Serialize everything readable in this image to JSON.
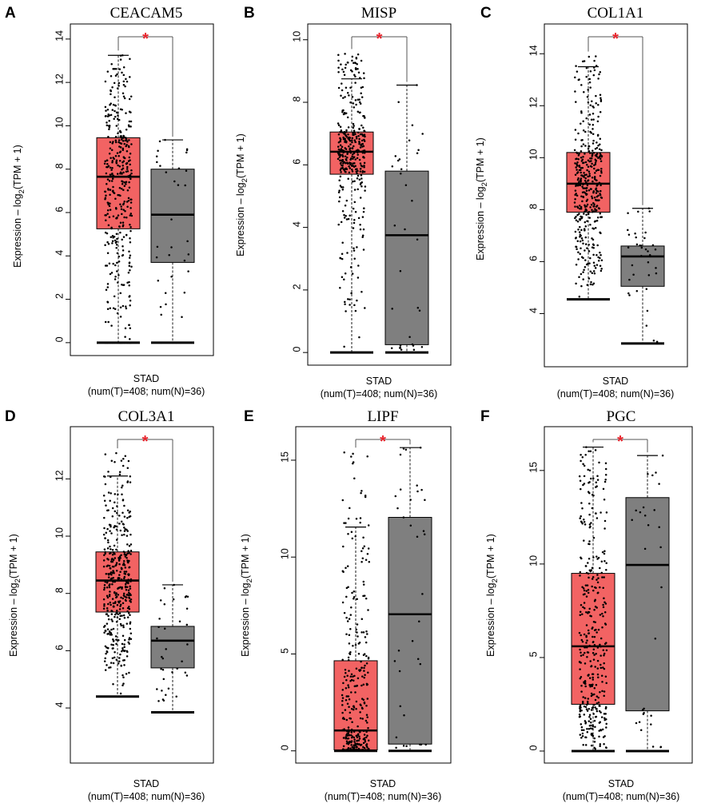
{
  "colors": {
    "tumor": "#f26363",
    "normal": "#7f7f7f",
    "significance": "#e8232b",
    "point": "#000000"
  },
  "ylabel_prefix": "Expression – log",
  "ylabel_sub": "2",
  "ylabel_suffix": "(TPM + 1)",
  "significance_marker": "*",
  "chart_data": [
    {
      "panel": "A",
      "type": "box",
      "title": "CEACAM5",
      "xlabel_line1": "STAD",
      "xlabel_line2": "(num(T)=408; num(N)=36)",
      "ylim": [
        -0.3,
        14.4
      ],
      "yticks": [
        0,
        2,
        4,
        6,
        8,
        10,
        12,
        14
      ],
      "tumor": {
        "n": 408,
        "whisker_low": 0,
        "q1": 5.25,
        "median": 7.65,
        "q3": 9.45,
        "whisker_high": 13.25,
        "max_point": 13.25
      },
      "normal": {
        "n": 36,
        "whisker_low": 0,
        "q1": 3.7,
        "median": 5.9,
        "q3": 8.0,
        "whisker_high": 9.35,
        "max_point": 9.35
      }
    },
    {
      "panel": "B",
      "type": "box",
      "title": "MISP",
      "xlabel_line1": "STAD",
      "xlabel_line2": "(num(T)=408; num(N)=36)",
      "ylim": [
        -0.2,
        10.3
      ],
      "yticks": [
        0,
        2,
        4,
        6,
        8,
        10
      ],
      "tumor": {
        "n": 408,
        "whisker_low": 0,
        "q1": 5.7,
        "median": 6.42,
        "q3": 7.05,
        "whisker_high": 8.75,
        "max_point": 9.55
      },
      "normal": {
        "n": 36,
        "whisker_low": 0,
        "q1": 0.25,
        "median": 3.75,
        "q3": 5.8,
        "whisker_high": 8.55,
        "max_point": 8.55
      }
    },
    {
      "panel": "C",
      "type": "box",
      "title": "COL1A1",
      "xlabel_line1": "STAD",
      "xlabel_line2": "(num(T)=408; num(N)=36)",
      "ylim": [
        2.2,
        14.9
      ],
      "yticks": [
        4,
        6,
        8,
        10,
        12,
        14
      ],
      "tumor": {
        "n": 408,
        "whisker_low": 4.55,
        "q1": 7.9,
        "median": 9.0,
        "q3": 10.2,
        "whisker_high": 13.5,
        "max_point": 13.9
      },
      "normal": {
        "n": 36,
        "whisker_low": 2.85,
        "q1": 5.05,
        "median": 6.2,
        "q3": 6.6,
        "whisker_high": 8.05,
        "max_point": 8.05
      }
    },
    {
      "panel": "D",
      "type": "box",
      "title": "COL3A1",
      "xlabel_line1": "STAD",
      "xlabel_line2": "(num(T)=408; num(N)=36)",
      "ylim": [
        2.3,
        13.6
      ],
      "yticks": [
        4,
        6,
        8,
        10,
        12
      ],
      "tumor": {
        "n": 408,
        "whisker_low": 4.4,
        "q1": 7.35,
        "median": 8.45,
        "q3": 9.45,
        "whisker_high": 12.1,
        "max_point": 12.9
      },
      "normal": {
        "n": 36,
        "whisker_low": 3.85,
        "q1": 5.4,
        "median": 6.35,
        "q3": 6.85,
        "whisker_high": 8.3,
        "max_point": 8.3
      }
    },
    {
      "panel": "E",
      "type": "box",
      "title": "LIPF",
      "xlabel_line1": "STAD",
      "xlabel_line2": "(num(T)=408; num(N)=36)",
      "ylim": [
        -0.3,
        16.4
      ],
      "yticks": [
        0,
        5,
        10,
        15
      ],
      "tumor": {
        "n": 408,
        "whisker_low": 0,
        "q1": 0.05,
        "median": 1.05,
        "q3": 4.65,
        "whisker_high": 11.55,
        "max_point": 15.4
      },
      "normal": {
        "n": 36,
        "whisker_low": 0,
        "q1": 0.35,
        "median": 7.05,
        "q3": 12.05,
        "whisker_high": 15.65,
        "max_point": 15.65
      }
    },
    {
      "panel": "F",
      "type": "box",
      "title": "PGC",
      "xlabel_line1": "STAD",
      "xlabel_line2": "(num(T)=408; num(N)=36)",
      "ylim": [
        -0.3,
        17.0
      ],
      "yticks": [
        0,
        5,
        10,
        15
      ],
      "tumor": {
        "n": 408,
        "whisker_low": 0,
        "q1": 2.5,
        "median": 5.6,
        "q3": 9.5,
        "whisker_high": 16.25,
        "max_point": 16.25
      },
      "normal": {
        "n": 36,
        "whisker_low": 0,
        "q1": 2.15,
        "median": 9.95,
        "q3": 13.55,
        "whisker_high": 15.8,
        "max_point": 15.8
      }
    }
  ]
}
